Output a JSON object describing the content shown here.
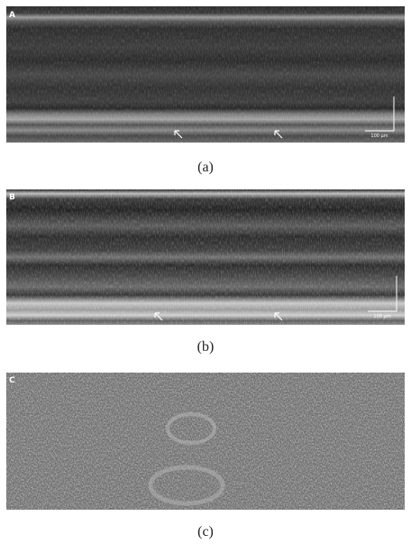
{
  "panels": [
    {
      "label": "A",
      "scale_bar": "100 μm",
      "caption": "(a)"
    },
    {
      "label": "B",
      "scale_bar": "100 μm",
      "caption": "(b)"
    },
    {
      "label": "C",
      "caption": "(c)"
    }
  ]
}
